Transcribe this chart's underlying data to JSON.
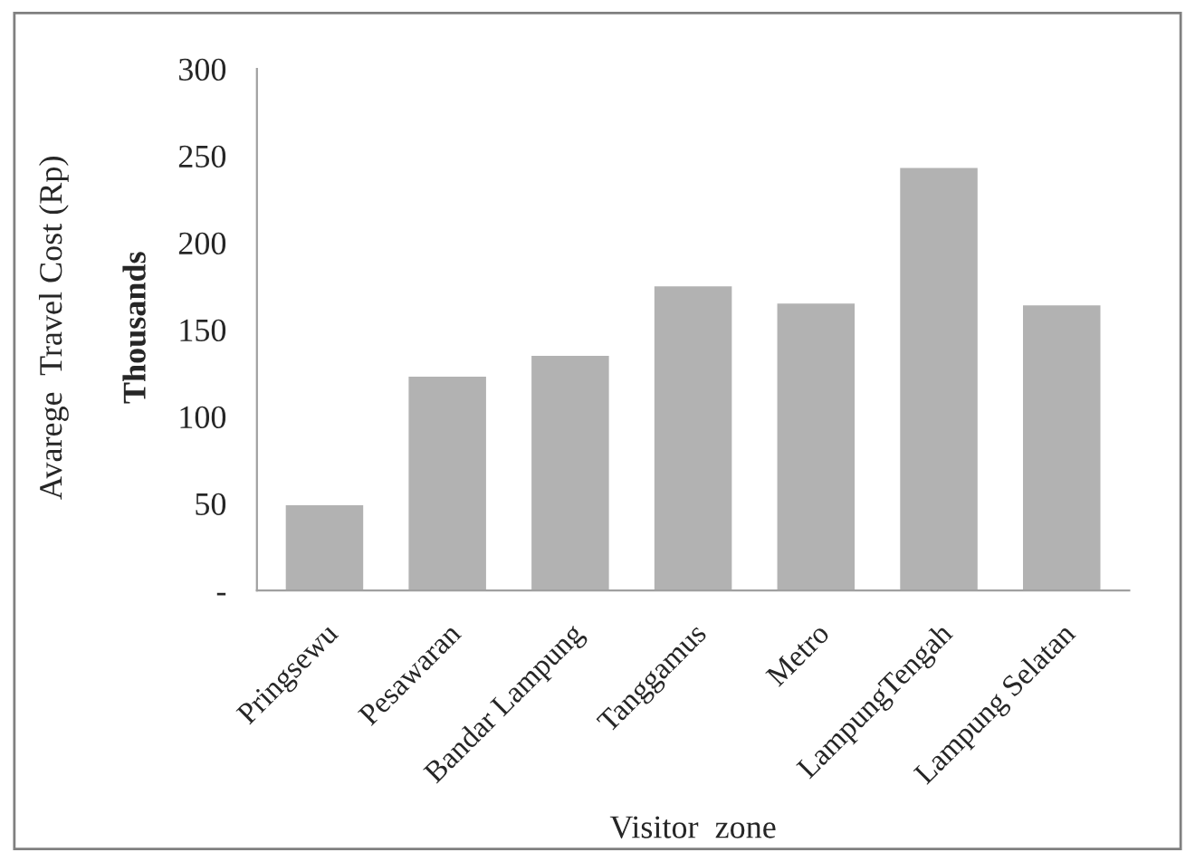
{
  "chart_data": {
    "type": "bar",
    "xlabel": "Visitor  zone",
    "ylabel": "Avarege  Travel Cost (Rp)",
    "annotations": [
      "Thousands"
    ],
    "categories": [
      "Pringsewu",
      "Pesawaran",
      "Bandar Lampung",
      "Tanggamus",
      "Metro",
      "LampungTengah",
      "Lampung Selatan"
    ],
    "values": [
      49,
      123,
      135,
      175,
      165,
      243,
      164
    ],
    "color": "#b2b2b2",
    "ylim": [
      0,
      300
    ],
    "yticks": [
      {
        "value": 0,
        "label": "-"
      },
      50,
      100,
      150,
      200,
      250,
      300
    ],
    "grid": false
  }
}
